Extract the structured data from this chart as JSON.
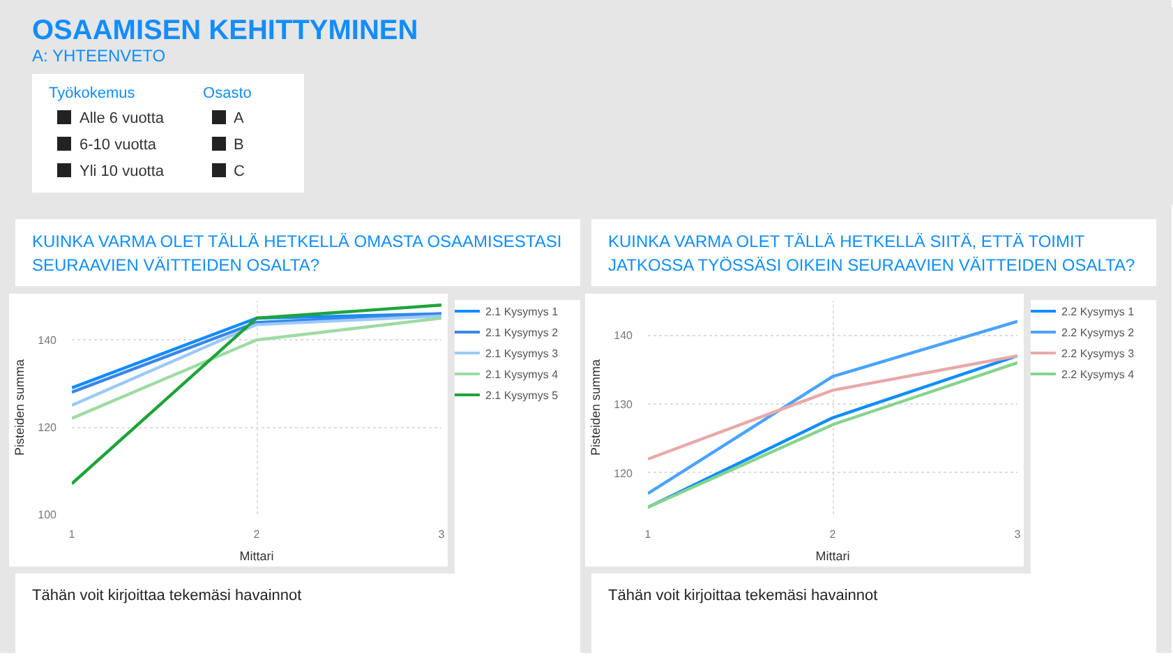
{
  "chart_data": [
    {
      "type": "other",
      "title": "OSAAMISEN KEHITTYMINEN",
      "subtitle": "A: YHTEENVETO",
      "annotations": [
        "Työkokemus",
        "Alle 6 vuotta",
        "6-10 vuotta",
        "Yli 10 vuotta",
        "Osasto",
        "A",
        "B",
        "C"
      ]
    },
    {
      "type": "line",
      "title": "KUINKA VARMA OLET TÄLLÄ HETKELLÄ OMASTA OSAAMISESTASI SEURAAVIEN VÄITTEIDEN OSALTA?",
      "xlabel": "Mittari",
      "ylabel": "Pisteiden summa",
      "x": [
        1,
        2,
        3
      ],
      "xlim": [
        1,
        3
      ],
      "xticks": [
        1,
        2,
        3
      ],
      "ylim": [
        100,
        149
      ],
      "yticks": [
        100,
        120,
        140
      ],
      "grid": true,
      "legend": "right",
      "annotations": [
        "Tähän voit kirjoittaa tekemäsi havainnot"
      ],
      "series": [
        {
          "name": "2.1 Kysymys 1",
          "color": "#118dff",
          "values": [
            129,
            145,
            146
          ]
        },
        {
          "name": "2.1 Kysymys 2",
          "color": "#3a86e8",
          "values": [
            128,
            144,
            146
          ]
        },
        {
          "name": "2.1 Kysymys 3",
          "color": "#9ccaf7",
          "values": [
            125,
            143.5,
            145.5
          ]
        },
        {
          "name": "2.1 Kysymys 4",
          "color": "#9edba4",
          "values": [
            122,
            140,
            145
          ]
        },
        {
          "name": "2.1 Kysymys 5",
          "color": "#1fa33a",
          "values": [
            107,
            145,
            148
          ]
        }
      ]
    },
    {
      "type": "line",
      "title": "KUINKA VARMA OLET TÄLLÄ HETKELLÄ SIITÄ, ETTÄ TOIMIT JATKOSSA TYÖSSÄSI OIKEIN SEURAAVIEN VÄITTEIDEN OSALTA?",
      "xlabel": "Mittari",
      "ylabel": "Pisteiden summa",
      "x": [
        1,
        2,
        3
      ],
      "xlim": [
        1,
        3
      ],
      "xticks": [
        1,
        2,
        3
      ],
      "ylim": [
        114,
        145
      ],
      "yticks": [
        120,
        130,
        140
      ],
      "grid": true,
      "legend": "right",
      "annotations": [
        "Tähän voit kirjoittaa tekemäsi havainnot"
      ],
      "series": [
        {
          "name": "2.2 Kysymys 1",
          "color": "#118dff",
          "values": [
            115,
            128,
            137
          ]
        },
        {
          "name": "2.2 Kysymys 2",
          "color": "#4aa3ff",
          "values": [
            117,
            134,
            142
          ]
        },
        {
          "name": "2.2 Kysymys 3",
          "color": "#e8a9a9",
          "values": [
            122,
            132,
            137
          ]
        },
        {
          "name": "2.2 Kysymys 4",
          "color": "#86d48d",
          "values": [
            115,
            127,
            136
          ]
        }
      ]
    }
  ]
}
